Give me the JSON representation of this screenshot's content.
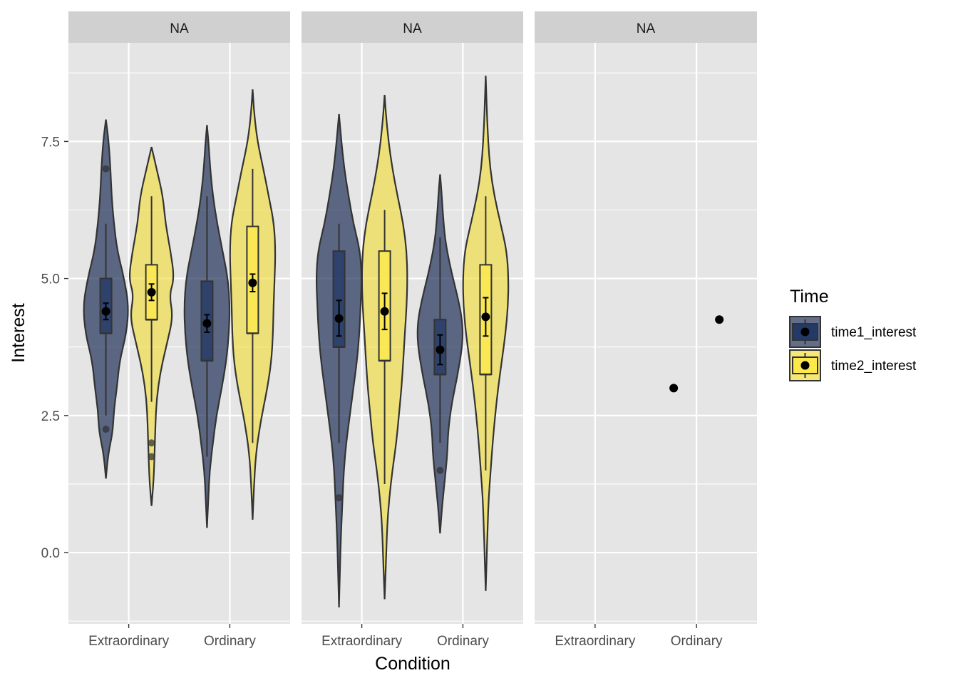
{
  "chart_data": {
    "type": "violin",
    "xlabel": "Condition",
    "ylabel": "Interest",
    "ylim": [
      -1.3,
      9.3
    ],
    "yticks": [
      {
        "value": 0,
        "label": "0.0"
      },
      {
        "value": 2.5,
        "label": "2.5"
      },
      {
        "value": 5,
        "label": "5.0"
      },
      {
        "value": 7.5,
        "label": "7.5"
      }
    ],
    "categories": [
      "Extraordinary",
      "Ordinary"
    ],
    "legend": {
      "title": "Time",
      "placement": "right",
      "entries": [
        {
          "name": "time1_interest",
          "color": "#1f3158",
          "box_color": "#243a66"
        },
        {
          "name": "time2_interest",
          "color": "#f1dd3f",
          "box_color": "#fde84b"
        }
      ]
    },
    "colors": {
      "panel_bg": "#e5e5e5",
      "strip_bg": "#d0d0d0",
      "grid": "#ffffff",
      "outline": "#333333"
    },
    "facets": [
      {
        "label": "NA",
        "groups": [
          {
            "category": "Extraordinary",
            "series": "time1_interest",
            "violin": [
              [
                1.35,
                0.0
              ],
              [
                1.8,
                0.1
              ],
              [
                2.2,
                0.3
              ],
              [
                2.6,
                0.35
              ],
              [
                3.0,
                0.48
              ],
              [
                3.5,
                0.6
              ],
              [
                4.0,
                0.9
              ],
              [
                4.5,
                1.0
              ],
              [
                5.0,
                0.8
              ],
              [
                5.5,
                0.5
              ],
              [
                6.0,
                0.35
              ],
              [
                6.5,
                0.25
              ],
              [
                7.0,
                0.2
              ],
              [
                7.5,
                0.12
              ],
              [
                7.9,
                0.0
              ]
            ],
            "box": {
              "q1": 4.0,
              "median": 4.0,
              "q3": 5.0,
              "lower": 2.5,
              "upper": 6.0
            },
            "outliers": [
              7.0,
              2.25
            ],
            "mean": 4.4,
            "ci": [
              4.25,
              4.55
            ]
          },
          {
            "category": "Extraordinary",
            "series": "time2_interest",
            "violin": [
              [
                0.85,
                0.0
              ],
              [
                1.3,
                0.08
              ],
              [
                1.8,
                0.12
              ],
              [
                2.3,
                0.15
              ],
              [
                2.8,
                0.2
              ],
              [
                3.3,
                0.35
              ],
              [
                3.8,
                0.6
              ],
              [
                4.3,
                0.85
              ],
              [
                4.7,
                0.7
              ],
              [
                5.0,
                0.9
              ],
              [
                5.5,
                0.75
              ],
              [
                6.0,
                0.55
              ],
              [
                6.5,
                0.45
              ],
              [
                7.0,
                0.2
              ],
              [
                7.4,
                0.0
              ]
            ],
            "box": {
              "q1": 4.25,
              "median": 4.25,
              "q3": 5.25,
              "lower": 2.75,
              "upper": 6.5
            },
            "outliers": [
              2.0,
              1.75
            ],
            "mean": 4.75,
            "ci": [
              4.6,
              4.9
            ]
          },
          {
            "category": "Ordinary",
            "series": "time1_interest",
            "violin": [
              [
                0.45,
                0.0
              ],
              [
                1.0,
                0.05
              ],
              [
                1.5,
                0.1
              ],
              [
                2.0,
                0.22
              ],
              [
                2.5,
                0.35
              ],
              [
                3.0,
                0.55
              ],
              [
                3.5,
                0.72
              ],
              [
                4.0,
                0.82
              ],
              [
                4.5,
                0.85
              ],
              [
                5.0,
                0.78
              ],
              [
                5.5,
                0.58
              ],
              [
                6.0,
                0.38
              ],
              [
                6.5,
                0.22
              ],
              [
                7.0,
                0.12
              ],
              [
                7.4,
                0.07
              ],
              [
                7.8,
                0.0
              ]
            ],
            "box": {
              "q1": 3.5,
              "median": 3.5,
              "q3": 4.95,
              "lower": 1.75,
              "upper": 6.5
            },
            "outliers": [],
            "mean": 4.18,
            "ci": [
              4.02,
              4.34
            ]
          },
          {
            "category": "Ordinary",
            "series": "time2_interest",
            "violin": [
              [
                0.6,
                0.0
              ],
              [
                1.2,
                0.05
              ],
              [
                1.8,
                0.12
              ],
              [
                2.4,
                0.3
              ],
              [
                3.0,
                0.55
              ],
              [
                3.5,
                0.7
              ],
              [
                4.0,
                0.76
              ],
              [
                4.5,
                0.78
              ],
              [
                5.0,
                0.82
              ],
              [
                5.5,
                0.85
              ],
              [
                6.0,
                0.8
              ],
              [
                6.5,
                0.6
              ],
              [
                7.0,
                0.4
              ],
              [
                7.5,
                0.18
              ],
              [
                8.0,
                0.06
              ],
              [
                8.45,
                0.0
              ]
            ],
            "box": {
              "q1": 4.0,
              "median": 4.0,
              "q3": 5.95,
              "lower": 2.0,
              "upper": 7.0
            },
            "outliers": [],
            "mean": 4.92,
            "ci": [
              4.76,
              5.08
            ]
          }
        ]
      },
      {
        "label": "NA",
        "groups": [
          {
            "category": "Extraordinary",
            "series": "time1_interest",
            "violin": [
              [
                -1.0,
                0.0
              ],
              [
                -0.3,
                0.04
              ],
              [
                0.3,
                0.08
              ],
              [
                1.0,
                0.15
              ],
              [
                1.5,
                0.2
              ],
              [
                2.0,
                0.3
              ],
              [
                2.5,
                0.45
              ],
              [
                3.0,
                0.6
              ],
              [
                3.5,
                0.75
              ],
              [
                4.0,
                0.85
              ],
              [
                4.5,
                0.9
              ],
              [
                5.0,
                0.95
              ],
              [
                5.5,
                0.88
              ],
              [
                6.0,
                0.6
              ],
              [
                6.5,
                0.4
              ],
              [
                7.0,
                0.22
              ],
              [
                7.5,
                0.1
              ],
              [
                8.0,
                0.0
              ]
            ],
            "box": {
              "q1": 3.75,
              "median": 3.75,
              "q3": 5.5,
              "lower": 2.0,
              "upper": 6.0
            },
            "outliers": [
              1.0
            ],
            "mean": 4.27,
            "ci": [
              3.95,
              4.6
            ]
          },
          {
            "category": "Extraordinary",
            "series": "time2_interest",
            "violin": [
              [
                -0.85,
                0.0
              ],
              [
                -0.2,
                0.05
              ],
              [
                0.5,
                0.1
              ],
              [
                1.0,
                0.18
              ],
              [
                1.5,
                0.3
              ],
              [
                2.0,
                0.45
              ],
              [
                2.5,
                0.55
              ],
              [
                3.0,
                0.65
              ],
              [
                3.5,
                0.72
              ],
              [
                4.0,
                0.78
              ],
              [
                4.5,
                0.85
              ],
              [
                5.0,
                0.88
              ],
              [
                5.5,
                0.85
              ],
              [
                6.0,
                0.72
              ],
              [
                6.5,
                0.5
              ],
              [
                7.0,
                0.3
              ],
              [
                7.5,
                0.15
              ],
              [
                8.0,
                0.05
              ],
              [
                8.35,
                0.0
              ]
            ],
            "box": {
              "q1": 3.5,
              "median": 3.5,
              "q3": 5.5,
              "lower": 1.25,
              "upper": 6.25
            },
            "outliers": [],
            "mean": 4.4,
            "ci": [
              4.07,
              4.73
            ]
          },
          {
            "category": "Ordinary",
            "series": "time1_interest",
            "violin": [
              [
                0.35,
                0.0
              ],
              [
                0.8,
                0.08
              ],
              [
                1.3,
                0.2
              ],
              [
                1.8,
                0.32
              ],
              [
                2.2,
                0.35
              ],
              [
                2.7,
                0.5
              ],
              [
                3.2,
                0.75
              ],
              [
                3.7,
                0.95
              ],
              [
                4.0,
                1.0
              ],
              [
                4.3,
                0.95
              ],
              [
                4.7,
                0.75
              ],
              [
                5.2,
                0.45
              ],
              [
                5.7,
                0.22
              ],
              [
                6.2,
                0.12
              ],
              [
                6.6,
                0.06
              ],
              [
                6.9,
                0.0
              ]
            ],
            "box": {
              "q1": 3.25,
              "median": 3.25,
              "q3": 4.25,
              "lower": 2.0,
              "upper": 5.75
            },
            "outliers": [
              1.5
            ],
            "mean": 3.7,
            "ci": [
              3.43,
              3.97
            ]
          },
          {
            "category": "Ordinary",
            "series": "time2_interest",
            "violin": [
              [
                -0.7,
                0.0
              ],
              [
                -0.1,
                0.04
              ],
              [
                0.5,
                0.08
              ],
              [
                1.0,
                0.12
              ],
              [
                1.5,
                0.2
              ],
              [
                2.0,
                0.28
              ],
              [
                2.5,
                0.38
              ],
              [
                3.0,
                0.5
              ],
              [
                3.5,
                0.65
              ],
              [
                4.0,
                0.8
              ],
              [
                4.5,
                0.9
              ],
              [
                5.0,
                0.92
              ],
              [
                5.5,
                0.85
              ],
              [
                6.0,
                0.6
              ],
              [
                6.5,
                0.35
              ],
              [
                7.0,
                0.18
              ],
              [
                7.5,
                0.1
              ],
              [
                8.0,
                0.05
              ],
              [
                8.7,
                0.0
              ]
            ],
            "box": {
              "q1": 3.25,
              "median": 3.25,
              "q3": 5.25,
              "lower": 1.5,
              "upper": 6.5
            },
            "outliers": [],
            "mean": 4.3,
            "ci": [
              3.95,
              4.65
            ]
          }
        ]
      },
      {
        "label": "NA",
        "groups": [
          {
            "category": "Ordinary",
            "series": "time1_interest",
            "mean": 3.0,
            "ci": [
              3.0,
              3.0
            ]
          },
          {
            "category": "Ordinary",
            "series": "time2_interest",
            "mean": 4.25,
            "ci": [
              4.25,
              4.25
            ]
          }
        ]
      }
    ]
  }
}
